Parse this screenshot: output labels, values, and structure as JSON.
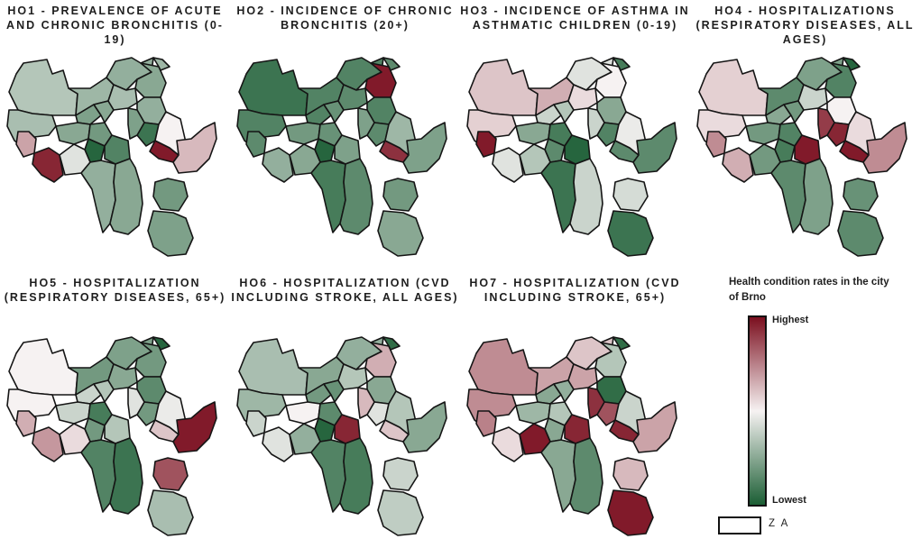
{
  "colors": {
    "highest": "#7b0f1f",
    "middle": "#f6f2f2",
    "lowest": "#1b5e34",
    "outline": "#151515"
  },
  "panels": [
    {
      "id": "ho1",
      "title": "HO1 - PREVALENCE OF ACUTE\nAND CHRONIC BRONCHITIS (0-19)",
      "values": [
        -0.3,
        -0.35,
        -0.4,
        -0.45,
        -0.5,
        -0.4,
        -0.55,
        -0.5,
        -0.35,
        -0.45,
        0.35,
        -0.5,
        -0.6,
        -0.85,
        -0.95,
        -0.75,
        -0.55,
        0.95,
        0.9,
        -0.1,
        0.0,
        0.25,
        -0.45,
        -0.5,
        -0.6,
        -0.55
      ]
    },
    {
      "id": "ho2",
      "title": "HO2 - INCIDENCE OF CHRONIC\nBRONCHITIS (20+)",
      "values": [
        -0.85,
        -0.75,
        -0.75,
        -0.75,
        0.95,
        -0.7,
        -0.75,
        -0.65,
        -0.7,
        -0.75,
        -0.7,
        -0.6,
        -0.65,
        -0.7,
        -0.95,
        -0.55,
        -0.55,
        0.85,
        -0.45,
        -0.5,
        -0.4,
        -0.55,
        -0.8,
        -0.7,
        -0.6,
        -0.5
      ]
    },
    {
      "id": "ho3",
      "title": "HO3 - INCIDENCE OF ASTHMA IN\nASTHMATIC CHILDREN (0-19)",
      "values": [
        0.2,
        0.15,
        0.3,
        -0.1,
        0.0,
        -0.8,
        -0.2,
        -0.3,
        0.1,
        -0.5,
        0.95,
        -0.5,
        -0.8,
        -0.75,
        -0.7,
        -0.95,
        -0.2,
        -0.7,
        -0.1,
        -0.3,
        -0.05,
        -0.7,
        -0.85,
        -0.2,
        -0.15,
        -0.85
      ]
    },
    {
      "id": "ho4",
      "title": "HO4 - HOSPITALIZATIONS\n(RESPIRATORY DISEASES, ALL\nAGES)",
      "values": [
        0.15,
        0.1,
        -0.7,
        -0.55,
        -0.75,
        -0.95,
        -0.5,
        -0.6,
        -0.2,
        0.0,
        0.45,
        -0.6,
        -0.75,
        0.9,
        -0.8,
        0.95,
        0.8,
        0.95,
        0.3,
        -0.6,
        0.1,
        0.45,
        -0.7,
        -0.55,
        -0.65,
        -0.7
      ]
    },
    {
      "id": "ho5",
      "title": "HO5 - HOSPITALIZATION\n(RESPIRATORY DISEASES, 65+)",
      "values": [
        0.0,
        0.0,
        -0.6,
        -0.55,
        -0.6,
        -0.95,
        -0.2,
        -0.3,
        -0.5,
        -0.7,
        0.3,
        -0.2,
        -0.8,
        -0.6,
        -0.6,
        -0.3,
        -0.1,
        0.2,
        0.4,
        0.1,
        -0.05,
        0.95,
        -0.75,
        -0.85,
        0.7,
        -0.35
      ]
    },
    {
      "id": "ho6",
      "title": "HO6 - HOSPITALIZATION (CVD\nINCLUDING STROKE, ALL AGES)",
      "values": [
        -0.35,
        -0.4,
        -0.5,
        -0.45,
        0.3,
        -0.9,
        -0.6,
        -0.65,
        -0.3,
        -0.5,
        -0.2,
        0.0,
        -0.7,
        -0.1,
        -0.95,
        0.9,
        0.25,
        0.2,
        -0.1,
        -0.45,
        -0.3,
        -0.5,
        -0.75,
        -0.8,
        -0.2,
        -0.25
      ]
    },
    {
      "id": "ho7",
      "title": "HO7 - HOSPITALIZATION (CVD\nINCLUDING STROKE, 65+)",
      "values": [
        0.45,
        0.45,
        0.35,
        0.2,
        -0.3,
        -0.9,
        -0.5,
        -0.45,
        0.35,
        -0.9,
        0.5,
        -0.4,
        -0.3,
        0.7,
        -0.5,
        0.9,
        0.85,
        0.9,
        0.1,
        0.95,
        -0.2,
        0.35,
        -0.5,
        -0.7,
        0.25,
        0.95
      ]
    }
  ],
  "legend": {
    "title": "Health condition rates in the city of Brno",
    "high_label": "Highest",
    "low_label": "Lowest",
    "za_label": "Z A"
  }
}
